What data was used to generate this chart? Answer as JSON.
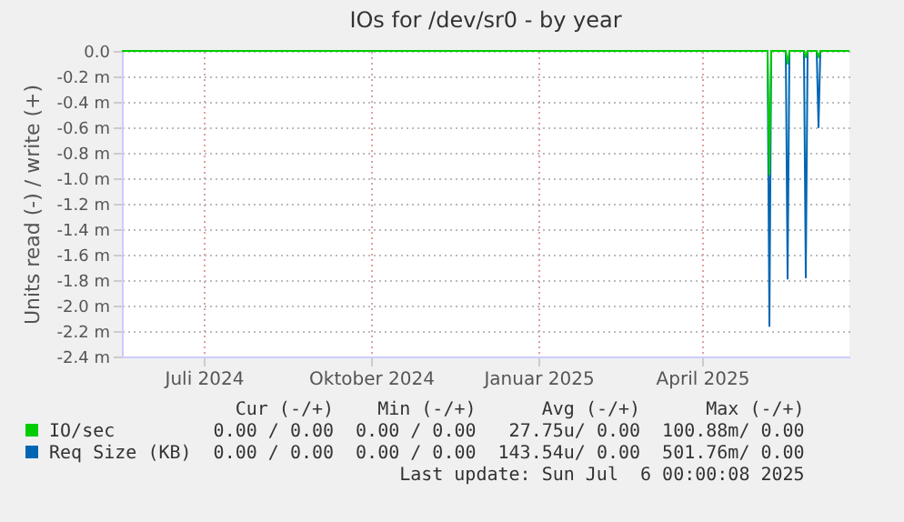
{
  "chart_data": {
    "type": "line",
    "title": "IOs for /dev/sr0 - by year",
    "ylabel": "Units read (-) / write (+)",
    "xlim": [
      "2024-06-01",
      "2025-07-06"
    ],
    "xticks": [
      {
        "value": "2024-07-16",
        "label": "Juli 2024"
      },
      {
        "value": "2024-10-16",
        "label": "Oktober 2024"
      },
      {
        "value": "2025-01-16",
        "label": "Januar 2025"
      },
      {
        "value": "2025-04-16",
        "label": "April 2025"
      }
    ],
    "ylim": [
      -2.4,
      0
    ],
    "yticks": [
      {
        "value": 0,
        "label": "0.0"
      },
      {
        "value": -0.2,
        "label": "-0.2 m"
      },
      {
        "value": -0.4,
        "label": "-0.4 m"
      },
      {
        "value": -0.6,
        "label": "-0.6 m"
      },
      {
        "value": -0.8,
        "label": "-0.8 m"
      },
      {
        "value": -1.0,
        "label": "-1.0 m"
      },
      {
        "value": -1.2,
        "label": "-1.2 m"
      },
      {
        "value": -1.4,
        "label": "-1.4 m"
      },
      {
        "value": -1.6,
        "label": "-1.6 m"
      },
      {
        "value": -1.8,
        "label": "-1.8 m"
      },
      {
        "value": -2.0,
        "label": "-2.0 m"
      },
      {
        "value": -2.2,
        "label": "-2.2 m"
      },
      {
        "value": -2.4,
        "label": "-2.4 m"
      }
    ],
    "grid": true,
    "marker": "none",
    "line_style": "solid",
    "legend": "bottom",
    "series": [
      {
        "name": "IO/sec",
        "color": "#00cc00",
        "x": [
          "2024-06-01",
          "2025-05-22",
          "2025-05-23",
          "2025-05-24",
          "2025-06-01",
          "2025-06-02",
          "2025-06-03",
          "2025-06-11",
          "2025-06-12",
          "2025-06-13",
          "2025-06-18",
          "2025-06-19",
          "2025-06-20",
          "2025-07-06"
        ],
        "values": [
          0,
          0,
          -0.97,
          0,
          0,
          -0.1,
          0,
          0,
          -0.05,
          0,
          0,
          -0.05,
          0,
          0
        ]
      },
      {
        "name": "Req Size (KB)",
        "color": "#0066b3",
        "x": [
          "2024-06-01",
          "2025-05-22",
          "2025-05-23",
          "2025-05-24",
          "2025-06-01",
          "2025-06-02",
          "2025-06-03",
          "2025-06-11",
          "2025-06-12",
          "2025-06-13",
          "2025-06-18",
          "2025-06-19",
          "2025-06-20",
          "2025-07-06"
        ],
        "values": [
          0,
          0,
          -2.16,
          0,
          0,
          -1.79,
          0,
          0,
          -1.78,
          0,
          0,
          -0.6,
          0,
          0
        ]
      }
    ],
    "annotations": [
      "Cur (-/+)",
      "Min (-/+)",
      "Avg (-/+)",
      "Max (-/+)",
      "0.00 / 0.00",
      "0.00 / 0.00",
      "27.75u/ 0.00",
      "100.88m/ 0.00",
      "0.00 / 0.00",
      "0.00 / 0.00",
      "143.54u/ 0.00",
      "501.76m/ 0.00",
      "Last update: Sun Jul  6 00:00:08 2025"
    ]
  }
}
